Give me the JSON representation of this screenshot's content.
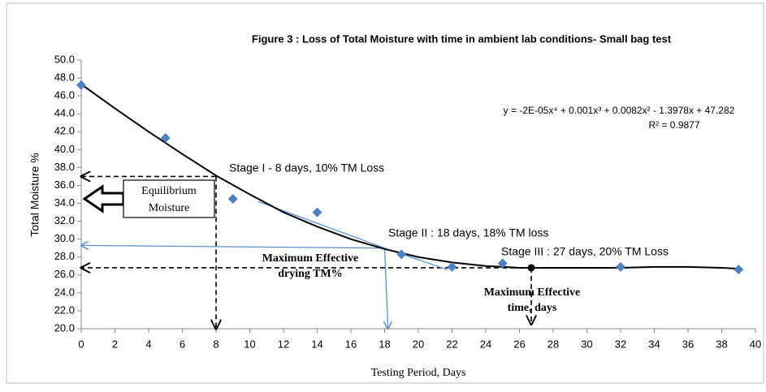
{
  "chart_data": {
    "type": "scatter",
    "title": "Figure 3 : Loss of Total Moisture with time in ambient lab conditions- Small bag test",
    "x_label": "Testing Period, Days",
    "y_label": "Total Moisture %",
    "x": [
      0,
      5,
      9,
      14,
      19,
      22,
      25,
      32,
      39
    ],
    "values": [
      47.2,
      41.3,
      34.5,
      33.0,
      28.3,
      26.9,
      27.3,
      26.9,
      26.6
    ],
    "color": "#4f81bd",
    "trendline": {
      "x": [
        0,
        2,
        4,
        6,
        8,
        10,
        12,
        14,
        16,
        18,
        20,
        22,
        24,
        26,
        28,
        30,
        32,
        34,
        36,
        38,
        39
      ],
      "values": [
        47.3,
        44.6,
        42.0,
        39.5,
        37.1,
        35.0,
        33.0,
        31.4,
        30.0,
        28.9,
        28.0,
        27.4,
        27.0,
        26.8,
        26.8,
        26.8,
        26.8,
        26.9,
        26.9,
        26.8,
        26.7
      ],
      "color": "#000000"
    },
    "xlim": [
      0,
      40
    ],
    "ylim": [
      20,
      50
    ],
    "xticks": [
      0,
      2,
      4,
      6,
      8,
      10,
      12,
      14,
      16,
      18,
      20,
      22,
      24,
      26,
      28,
      30,
      32,
      34,
      36,
      38,
      40
    ],
    "yticks": [
      {
        "value": 20,
        "label": "20.0"
      },
      {
        "value": 22,
        "label": "22.0"
      },
      {
        "value": 24,
        "label": "24.0"
      },
      {
        "value": 26,
        "label": "26.0"
      },
      {
        "value": 28,
        "label": "28.0"
      },
      {
        "value": 30,
        "label": "30.0"
      },
      {
        "value": 32,
        "label": "32.0"
      },
      {
        "value": 34,
        "label": "34.0"
      },
      {
        "value": 36,
        "label": "36.0"
      },
      {
        "value": 38,
        "label": "38.0"
      },
      {
        "value": 40,
        "label": "40.0"
      },
      {
        "value": 42,
        "label": "42.0"
      },
      {
        "value": 44,
        "label": "44.0"
      },
      {
        "value": 46,
        "label": "46.0"
      },
      {
        "value": 48,
        "label": "48.0"
      },
      {
        "value": 50,
        "label": "50.0"
      }
    ],
    "point": {
      "x": 26.7,
      "y": 26.8
    },
    "guides": [
      {
        "x": [
          8,
          0
        ],
        "y": [
          37,
          37
        ],
        "dash": true,
        "arrow": true,
        "color": "#000000"
      },
      {
        "x": [
          8,
          8
        ],
        "y": [
          37,
          20
        ],
        "dash": true,
        "arrow": true,
        "color": "#000000"
      },
      {
        "x": [
          26.7,
          0
        ],
        "y": [
          26.8,
          26.8
        ],
        "dash": true,
        "arrow": true,
        "color": "#000000"
      },
      {
        "x": [
          26.7,
          26.7
        ],
        "y": [
          26.8,
          20.5
        ],
        "dash": true,
        "arrow": true,
        "color": "#000000"
      },
      {
        "x": [
          18,
          0
        ],
        "y": [
          29,
          29.3
        ],
        "dash": false,
        "arrow": true,
        "color": "#5b8fd0"
      },
      {
        "x": [
          18,
          18.2
        ],
        "y": [
          29,
          20
        ],
        "dash": false,
        "arrow": true,
        "color": "#5b8fd0"
      },
      {
        "x": [
          10.5,
          18
        ],
        "y": [
          34.2,
          29
        ],
        "dash": false,
        "arrow": false,
        "color": "#5b8fd0"
      },
      {
        "x": [
          18,
          21.7
        ],
        "y": [
          29,
          26.6
        ],
        "dash": false,
        "arrow": false,
        "color": "#5b8fd0"
      }
    ],
    "equation": "y = -2E-05x⁴ + 0.001x³ + 0.0082x² - 1.3978x + 47.282",
    "r_squared": "R² = 0.9877",
    "annotations": [
      "Stage I - 8 days, 10% TM Loss",
      "Stage II : 18 days, 18% TM loss",
      "Stage III : 27 days, 20% TM Loss"
    ],
    "equilibrium_box": [
      "Equilibrium",
      "Moisture"
    ],
    "max_drying_label": [
      "Maximum  Effective",
      "drying  TM%"
    ],
    "max_time_label": [
      "Maximum  Effective",
      "time, days"
    ]
  }
}
